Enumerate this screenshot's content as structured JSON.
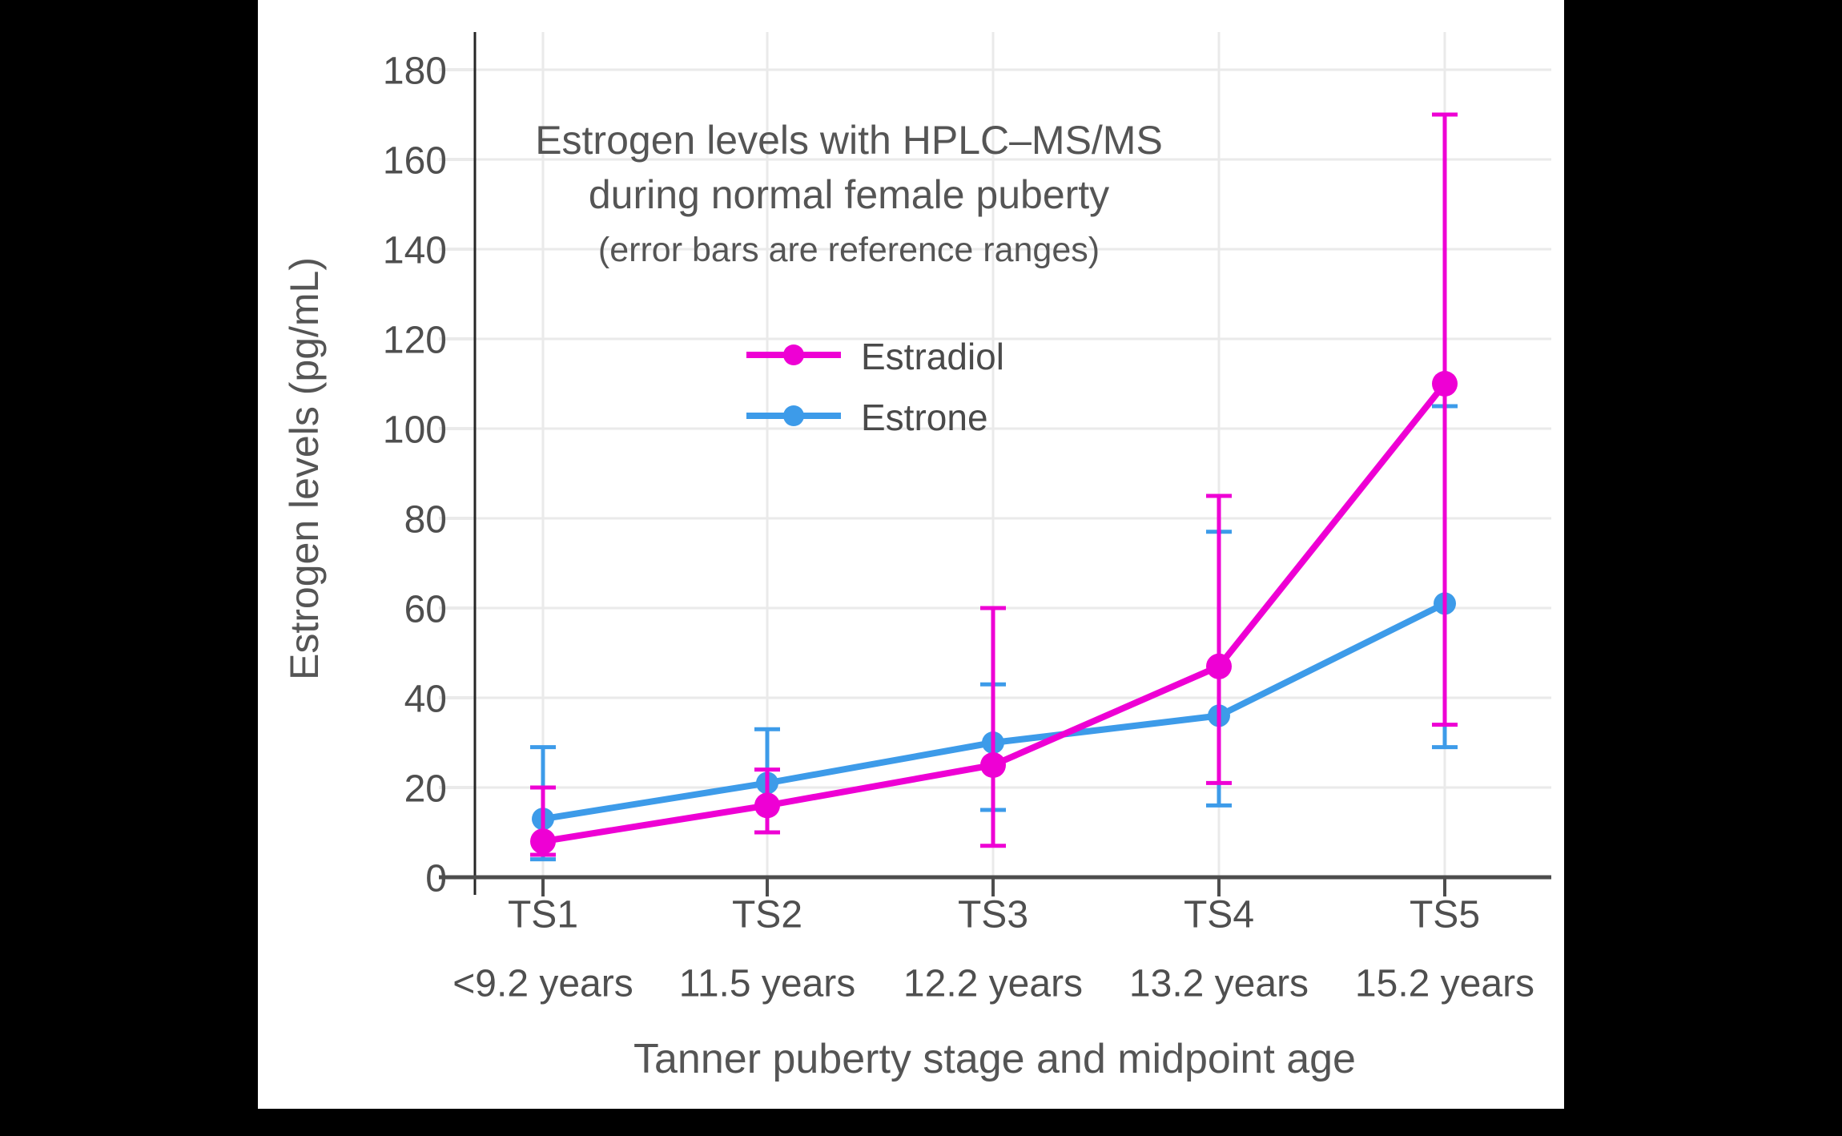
{
  "page": {
    "background": "#000000",
    "panel_background": "#ffffff"
  },
  "chart_data": {
    "type": "line",
    "title_lines": [
      "Estrogen levels with HPLC–MS/MS",
      "during normal female puberty"
    ],
    "subtitle": "(error bars are reference ranges)",
    "xlabel": "Tanner puberty stage and midpoint age",
    "ylabel": "Estrogen levels (pg/mL)",
    "categories": [
      "TS1",
      "TS2",
      "TS3",
      "TS4",
      "TS5"
    ],
    "category_sublabels": [
      "<9.2 years",
      "11.5 years",
      "12.2 years",
      "13.2 years",
      "15.2 years"
    ],
    "ylim": [
      0,
      180
    ],
    "ytick_step": 20,
    "grid": true,
    "legend": {
      "position": "inside-top-left",
      "entries": [
        "Estradiol",
        "Estrone"
      ]
    },
    "series": [
      {
        "name": "Estradiol",
        "color": "#ee00d4",
        "values": [
          8,
          16,
          25,
          47,
          110
        ],
        "error_low": [
          5,
          10,
          7,
          21,
          34
        ],
        "error_high": [
          20,
          24,
          60,
          85,
          170
        ]
      },
      {
        "name": "Estrone",
        "color": "#3d9be9",
        "values": [
          13,
          21,
          30,
          36,
          61
        ],
        "error_low": [
          4,
          10,
          15,
          16,
          29
        ],
        "error_high": [
          29,
          33,
          43,
          77,
          105
        ]
      }
    ],
    "colors": {
      "text": "#4f4f4f",
      "title_text": "#555555",
      "grid": "#eaeaea",
      "y_axis": "#262626",
      "x_axis": "#4d4d4d"
    }
  }
}
